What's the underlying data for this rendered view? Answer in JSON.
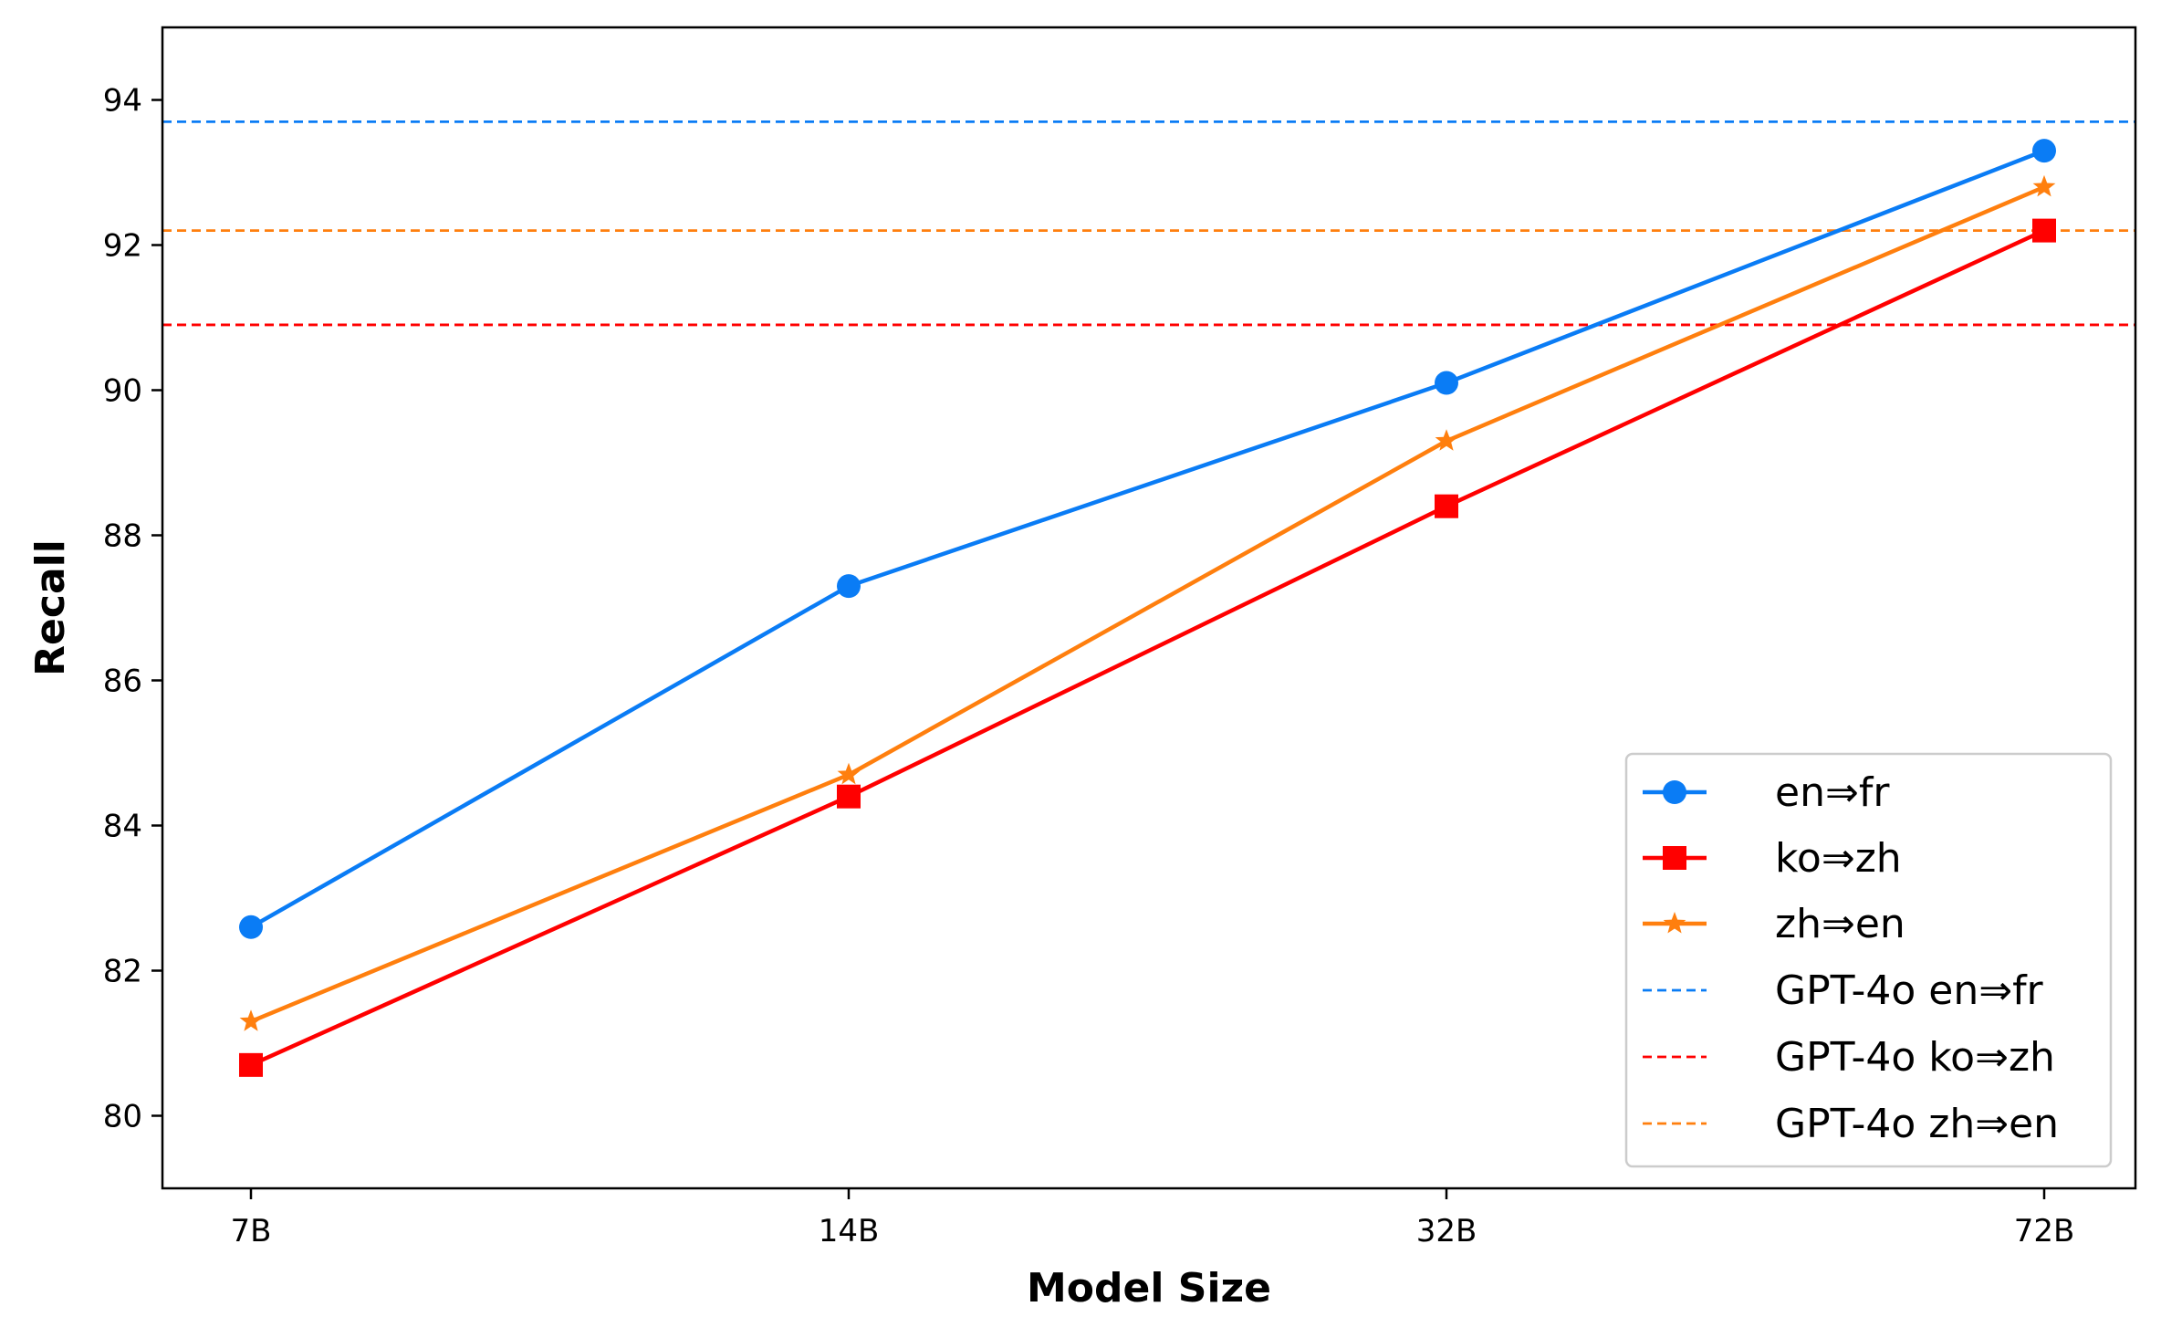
{
  "chart_data": {
    "type": "line",
    "title": "",
    "xlabel": "Model Size",
    "ylabel": "Recall",
    "categories": [
      "7B",
      "14B",
      "32B",
      "72B"
    ],
    "ylim": [
      79,
      95
    ],
    "yticks": [
      80,
      82,
      84,
      86,
      88,
      90,
      92,
      94
    ],
    "grid": false,
    "legend_position": "lower right",
    "series": [
      {
        "name": "en⇒fr",
        "values": [
          82.6,
          87.3,
          90.1,
          93.3
        ],
        "color": "#0a7cf5",
        "marker": "circle"
      },
      {
        "name": "ko⇒zh",
        "values": [
          80.7,
          84.4,
          88.4,
          92.2
        ],
        "color": "#ff0000",
        "marker": "square"
      },
      {
        "name": "zh⇒en",
        "values": [
          81.3,
          84.7,
          89.3,
          92.8
        ],
        "color": "#ff7f0e",
        "marker": "star"
      }
    ],
    "reference_lines": [
      {
        "name": "GPT-4o en⇒fr",
        "value": 93.7,
        "color": "#0a7cf5",
        "style": "dashed"
      },
      {
        "name": "GPT-4o ko⇒zh",
        "value": 90.9,
        "color": "#ff0000",
        "style": "dashed"
      },
      {
        "name": "GPT-4o zh⇒en",
        "value": 92.2,
        "color": "#ff7f0e",
        "style": "dashed"
      }
    ]
  }
}
